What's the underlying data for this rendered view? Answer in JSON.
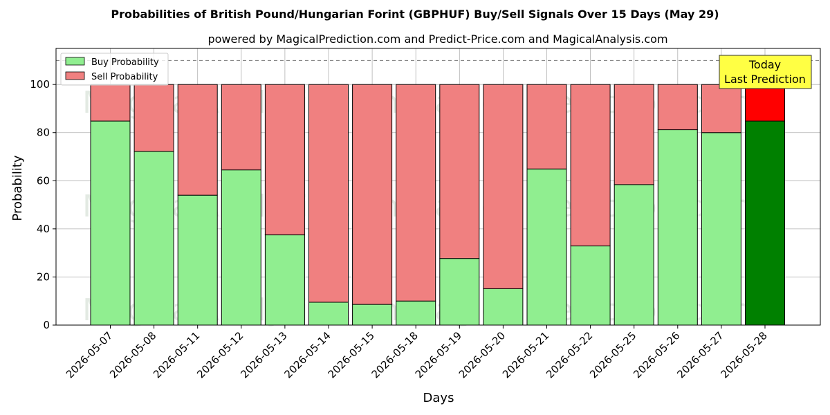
{
  "chart_data": {
    "type": "bar",
    "stacked": true,
    "title": "Probabilities of British Pound/Hungarian Forint (GBPHUF) Buy/Sell Signals Over 15 Days (May 29)",
    "subtitle": "powered by MagicalPrediction.com and Predict-Price.com and MagicalAnalysis.com",
    "xlabel": "Days",
    "ylabel": "Probability",
    "ylim": [
      0,
      115
    ],
    "yticks": [
      0,
      20,
      40,
      60,
      80,
      100
    ],
    "grid": true,
    "legend_position": "top-left",
    "reference_line": 110,
    "categories": [
      "2026-05-07",
      "2026-05-08",
      "2026-05-11",
      "2026-05-12",
      "2026-05-13",
      "2026-05-14",
      "2026-05-15",
      "2026-05-18",
      "2026-05-19",
      "2026-05-20",
      "2026-05-21",
      "2026-05-22",
      "2026-05-25",
      "2026-05-26",
      "2026-05-27",
      "2026-05-28"
    ],
    "series": [
      {
        "name": "Buy Probability",
        "values": [
          84.8,
          72.2,
          54.0,
          64.5,
          37.5,
          9.5,
          8.6,
          10.0,
          27.7,
          15.1,
          64.9,
          32.9,
          58.4,
          81.2,
          80.0,
          84.8
        ]
      },
      {
        "name": "Sell Probability",
        "values": [
          15.2,
          27.8,
          46.0,
          35.5,
          62.5,
          90.5,
          91.4,
          90.0,
          72.3,
          84.9,
          35.1,
          67.1,
          41.6,
          18.8,
          20.0,
          15.2
        ]
      }
    ],
    "colors": {
      "buy": "#90ee90",
      "sell": "#f08080",
      "buy_today": "#008000",
      "sell_today": "#ff0000",
      "today_box": "#ffff44"
    },
    "annotation": {
      "line1": "Today",
      "line2": "Last Prediction"
    },
    "watermarks": [
      "MagicalAnalysis.com",
      "MagicalPrediction.com"
    ]
  }
}
